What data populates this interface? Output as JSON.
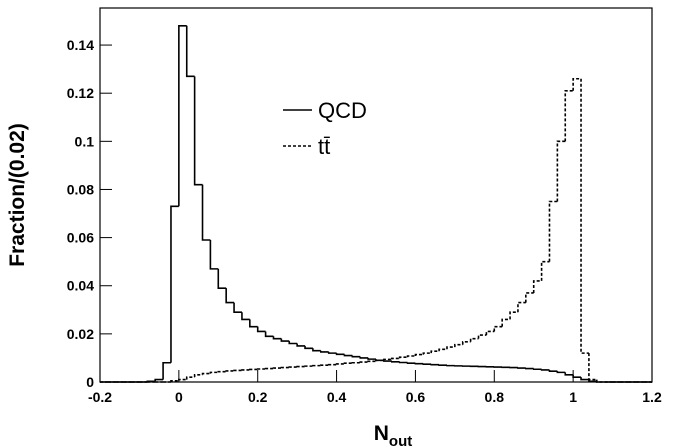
{
  "chart_data": {
    "type": "histogram",
    "x_label": "N",
    "x_label_sub": "out",
    "y_label": "Fraction/(0.02)",
    "bins": [
      -0.2,
      -0.18,
      -0.16,
      -0.14,
      -0.12,
      -0.1,
      -0.08,
      -0.06,
      -0.04,
      -0.02,
      0,
      0.02,
      0.04,
      0.06,
      0.08,
      0.1,
      0.12,
      0.14,
      0.16,
      0.18,
      0.2,
      0.22,
      0.24,
      0.26,
      0.28,
      0.3,
      0.32,
      0.34,
      0.36,
      0.38,
      0.4,
      0.42,
      0.44,
      0.46,
      0.48,
      0.5,
      0.52,
      0.54,
      0.56,
      0.58,
      0.6,
      0.62,
      0.64,
      0.66,
      0.68,
      0.7,
      0.72,
      0.74,
      0.76,
      0.78,
      0.8,
      0.82,
      0.84,
      0.86,
      0.88,
      0.9,
      0.92,
      0.94,
      0.96,
      0.98,
      1.0,
      1.02,
      1.04,
      1.06,
      1.08,
      1.1,
      1.12,
      1.14,
      1.16,
      1.18,
      1.2
    ],
    "series": [
      {
        "name": "QCD",
        "color": "#000000",
        "line_style": "solid",
        "values": [
          0,
          0,
          0,
          0,
          0,
          0,
          0.0003,
          0.001,
          0.008,
          0.073,
          0.148,
          0.127,
          0.082,
          0.059,
          0.047,
          0.039,
          0.033,
          0.029,
          0.026,
          0.023,
          0.021,
          0.019,
          0.018,
          0.017,
          0.016,
          0.015,
          0.014,
          0.013,
          0.0125,
          0.012,
          0.0115,
          0.011,
          0.0105,
          0.01,
          0.0095,
          0.009,
          0.0087,
          0.0084,
          0.0081,
          0.0078,
          0.0076,
          0.0074,
          0.0072,
          0.007,
          0.0068,
          0.0067,
          0.0066,
          0.0065,
          0.0064,
          0.0063,
          0.0062,
          0.0061,
          0.006,
          0.0058,
          0.0056,
          0.0053,
          0.005,
          0.0045,
          0.004,
          0.003,
          0.002,
          0.001,
          0.0003,
          0,
          0,
          0,
          0,
          0,
          0,
          0
        ]
      },
      {
        "name": "tt̄",
        "color": "#000000",
        "line_style": "dashed",
        "values": [
          0,
          0,
          0,
          0,
          0,
          0,
          0,
          0,
          0,
          0.0005,
          0.001,
          0.002,
          0.003,
          0.0035,
          0.004,
          0.0043,
          0.0046,
          0.0048,
          0.005,
          0.0052,
          0.0054,
          0.0056,
          0.0058,
          0.006,
          0.0062,
          0.0064,
          0.0066,
          0.0068,
          0.007,
          0.0072,
          0.0075,
          0.0078,
          0.008,
          0.0083,
          0.0086,
          0.009,
          0.0094,
          0.0098,
          0.0103,
          0.0108,
          0.0114,
          0.012,
          0.0128,
          0.0136,
          0.0145,
          0.0155,
          0.0167,
          0.018,
          0.0195,
          0.021,
          0.023,
          0.026,
          0.029,
          0.033,
          0.037,
          0.042,
          0.05,
          0.075,
          0.1,
          0.121,
          0.126,
          0.012,
          0.001,
          0,
          0,
          0,
          0,
          0,
          0,
          0
        ]
      }
    ],
    "xlim": [
      -0.2,
      1.2
    ],
    "xticks": [
      -0.2,
      0,
      0.2,
      0.4,
      0.6,
      0.8,
      1,
      1.2
    ],
    "ylim": [
      0,
      0.1554
    ],
    "yticks": [
      0,
      0.02,
      0.04,
      0.06,
      0.08,
      0.1,
      0.12,
      0.14
    ]
  }
}
